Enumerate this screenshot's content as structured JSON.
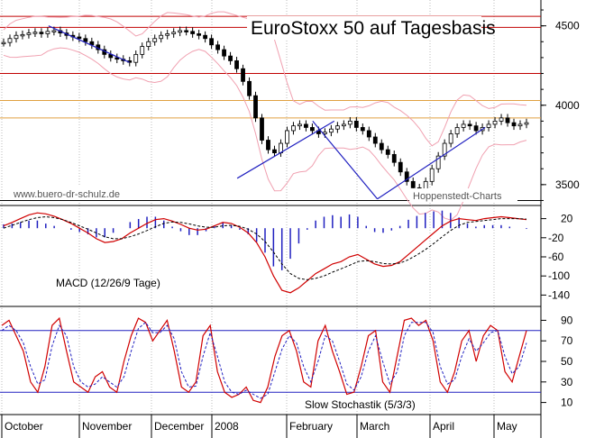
{
  "chart_data": [
    {
      "type": "line",
      "title": "EuroStoxx 50 auf Tagesbasis",
      "watermark": "www.buero-dr-schulz.de",
      "source": "Hoppenstedt-Charts",
      "x_labels": [
        "October",
        "November",
        "December",
        "2008",
        "February",
        "March",
        "April",
        "May"
      ],
      "y_ticks": [
        4500,
        4000,
        3500
      ],
      "ylim": [
        3380,
        4640
      ],
      "resistance_lines": [
        {
          "value": 4560,
          "color": "#c00000"
        },
        {
          "value": 4490,
          "color": "#c00000"
        },
        {
          "value": 4200,
          "color": "#c00000"
        },
        {
          "value": 4030,
          "color": "#e0a040"
        },
        {
          "value": 3920,
          "color": "#e0a040"
        },
        {
          "value": 3400,
          "color": "#000000"
        }
      ],
      "series": [
        {
          "values": [
            4395,
            4420,
            4440,
            4445,
            4455,
            4460,
            4450,
            4465,
            4470,
            4455,
            4440,
            4430,
            4420,
            4400,
            4380,
            4350,
            4320,
            4300,
            4290,
            4280,
            4270,
            4320,
            4370,
            4400,
            4420,
            4440,
            4450,
            4460,
            4470,
            4465,
            4450,
            4440,
            4420,
            4380,
            4350,
            4310,
            4280,
            4230,
            4150,
            4060,
            3920,
            3780,
            3720,
            3700,
            3760,
            3840,
            3870,
            3880,
            3860,
            3840,
            3820,
            3830,
            3850,
            3870,
            3880,
            3900,
            3860,
            3840,
            3800,
            3760,
            3720,
            3690,
            3640,
            3580,
            3520,
            3480,
            3460,
            3520,
            3600,
            3680,
            3760,
            3820,
            3860,
            3880,
            3870,
            3840,
            3860,
            3880,
            3900,
            3920,
            3890,
            3870,
            3880,
            3890
          ]
        }
      ],
      "trendlines": [
        {
          "x": [
            0.09,
            0.24
          ],
          "y": [
            4500,
            4270
          ],
          "color": "#2020c0"
        },
        {
          "x": [
            0.44,
            0.62
          ],
          "y": [
            3540,
            3900
          ],
          "color": "#2020c0"
        },
        {
          "x": [
            0.58,
            0.7
          ],
          "y": [
            3900,
            3410
          ],
          "color": "#2020c0"
        },
        {
          "x": [
            0.7,
            0.9
          ],
          "y": [
            3410,
            3860
          ],
          "color": "#2020c0"
        }
      ]
    },
    {
      "type": "line",
      "title": "MACD (12/26/9 Tage)",
      "y_ticks": [
        20,
        -20,
        -60,
        -100,
        -140
      ],
      "ylim": [
        -160,
        40
      ],
      "series": [
        {
          "values": [
            5,
            12,
            20,
            28,
            32,
            30,
            25,
            18,
            10,
            0,
            -10,
            -22,
            -30,
            -28,
            -22,
            -10,
            0,
            10,
            18,
            20,
            15,
            8,
            0,
            -4,
            -2,
            5,
            12,
            10,
            2,
            -10,
            -30,
            -60,
            -100,
            -130,
            -135,
            -125,
            -110,
            -95,
            -85,
            -75,
            -70,
            -60,
            -55,
            -65,
            -75,
            -80,
            -78,
            -70,
            -55,
            -40,
            -25,
            -10,
            5,
            15,
            20,
            18,
            16,
            20,
            22,
            24,
            22,
            20,
            18
          ]
        },
        {
          "values": [
            0,
            6,
            12,
            18,
            22,
            24,
            22,
            18,
            12,
            5,
            -2,
            -10,
            -18,
            -22,
            -22,
            -18,
            -12,
            -5,
            3,
            10,
            13,
            12,
            9,
            5,
            2,
            2,
            5,
            6,
            4,
            -2,
            -12,
            -28,
            -50,
            -75,
            -95,
            -105,
            -108,
            -105,
            -100,
            -92,
            -85,
            -78,
            -70,
            -68,
            -70,
            -74,
            -75,
            -73,
            -66,
            -56,
            -45,
            -32,
            -18,
            -5,
            6,
            12,
            14,
            16,
            18,
            20,
            20,
            20,
            19
          ]
        }
      ]
    },
    {
      "type": "line",
      "title": "Slow Stochastik (5/3/3)",
      "y_ticks": [
        90,
        70,
        50,
        30,
        10
      ],
      "ylim": [
        0,
        100
      ],
      "ref_lines": [
        80,
        20
      ],
      "series": [
        {
          "values": [
            85,
            90,
            75,
            60,
            30,
            20,
            45,
            85,
            92,
            60,
            30,
            25,
            20,
            35,
            40,
            25,
            20,
            50,
            75,
            92,
            88,
            70,
            80,
            90,
            60,
            25,
            20,
            30,
            75,
            85,
            40,
            20,
            15,
            18,
            25,
            12,
            10,
            25,
            55,
            75,
            80,
            60,
            30,
            25,
            70,
            85,
            60,
            40,
            18,
            20,
            45,
            75,
            80,
            30,
            20,
            55,
            90,
            92,
            85,
            90,
            70,
            30,
            20,
            40,
            70,
            80,
            50,
            75,
            85,
            80,
            40,
            30,
            55,
            80
          ]
        },
        {
          "values": [
            80,
            85,
            80,
            68,
            45,
            28,
            32,
            65,
            85,
            75,
            45,
            30,
            25,
            28,
            35,
            30,
            25,
            35,
            60,
            82,
            88,
            78,
            78,
            85,
            72,
            40,
            25,
            26,
            55,
            78,
            55,
            30,
            20,
            18,
            22,
            18,
            14,
            18,
            40,
            62,
            75,
            68,
            45,
            30,
            50,
            75,
            70,
            50,
            28,
            22,
            35,
            60,
            75,
            50,
            28,
            40,
            75,
            88,
            88,
            88,
            78,
            45,
            28,
            32,
            55,
            72,
            60,
            68,
            78,
            80,
            55,
            38,
            45,
            68
          ]
        }
      ]
    }
  ]
}
